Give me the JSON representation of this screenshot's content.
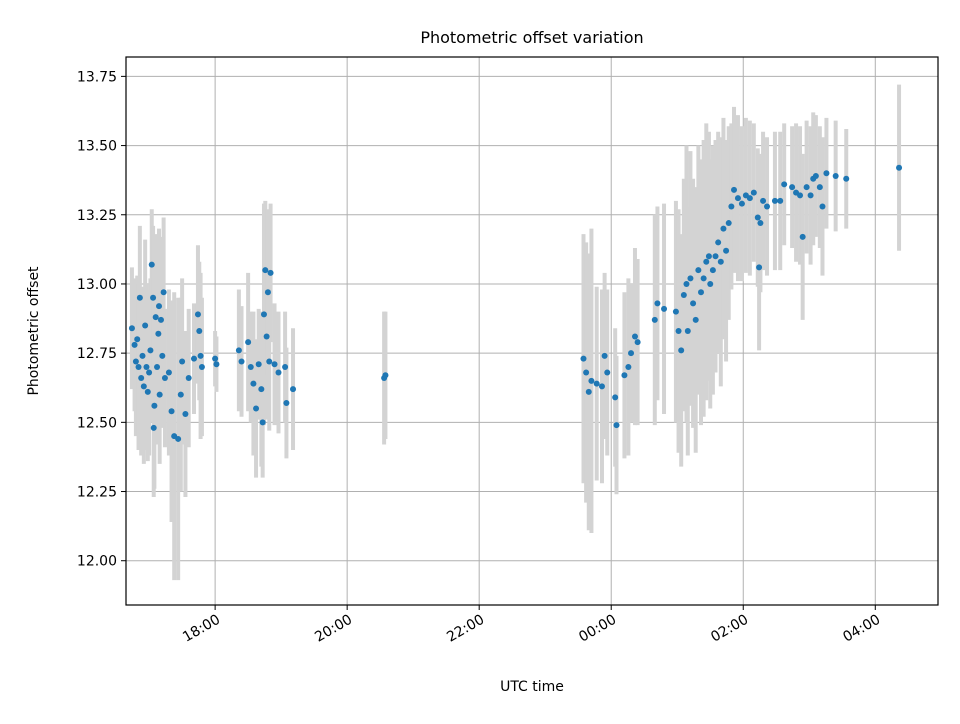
{
  "chart_data": {
    "type": "scatter",
    "title": "Photometric offset variation",
    "xlabel": "UTC time",
    "ylabel": "Photometric offset",
    "x_tick_labels": [
      "18:00",
      "20:00",
      "22:00",
      "00:00",
      "02:00",
      "04:00"
    ],
    "x_tick_hours": [
      18,
      20,
      22,
      24,
      26,
      28
    ],
    "y_ticks": [
      12.0,
      12.25,
      12.5,
      12.75,
      13.0,
      13.25,
      13.5,
      13.75
    ],
    "y_tick_labels": [
      "12.00",
      "12.25",
      "12.50",
      "12.75",
      "13.00",
      "13.25",
      "13.50",
      "13.75"
    ],
    "x_range_hours": [
      16.65,
      28.95
    ],
    "ylim": [
      11.84,
      13.82
    ],
    "grid": true,
    "marker_color": "#1f77b4",
    "errorbar_color": "#d3d3d3",
    "points": [
      [
        16.74,
        12.84,
        0.22
      ],
      [
        16.78,
        12.78,
        0.24
      ],
      [
        16.8,
        12.72,
        0.27
      ],
      [
        16.82,
        12.8,
        0.23
      ],
      [
        16.84,
        12.7,
        0.3
      ],
      [
        16.86,
        12.95,
        0.26
      ],
      [
        16.88,
        12.66,
        0.28
      ],
      [
        16.9,
        12.74,
        0.25
      ],
      [
        16.92,
        12.63,
        0.28
      ],
      [
        16.94,
        12.85,
        0.31
      ],
      [
        16.96,
        12.7,
        0.3
      ],
      [
        16.98,
        12.61,
        0.25
      ],
      [
        17.0,
        12.68,
        0.3
      ],
      [
        17.02,
        12.76,
        0.26
      ],
      [
        17.04,
        13.07,
        0.2
      ],
      [
        17.06,
        12.95,
        0.26
      ],
      [
        17.07,
        12.48,
        0.25
      ],
      [
        17.08,
        12.56,
        0.3
      ],
      [
        17.1,
        12.88,
        0.3
      ],
      [
        17.12,
        12.7,
        0.28
      ],
      [
        17.14,
        12.82,
        0.3
      ],
      [
        17.15,
        12.92,
        0.28
      ],
      [
        17.16,
        12.6,
        0.25
      ],
      [
        17.18,
        12.87,
        0.3
      ],
      [
        17.2,
        12.74,
        0.26
      ],
      [
        17.22,
        12.97,
        0.27
      ],
      [
        17.24,
        12.66,
        0.25
      ],
      [
        17.3,
        12.68,
        0.3
      ],
      [
        17.34,
        12.54,
        0.4
      ],
      [
        17.38,
        12.45,
        0.52
      ],
      [
        17.44,
        12.44,
        0.51
      ],
      [
        17.48,
        12.6,
        0.35
      ],
      [
        17.5,
        12.72,
        0.3
      ],
      [
        17.55,
        12.53,
        0.3
      ],
      [
        17.6,
        12.66,
        0.25
      ],
      [
        17.68,
        12.73,
        0.2
      ],
      [
        17.74,
        12.89,
        0.25
      ],
      [
        17.76,
        12.83,
        0.25
      ],
      [
        17.78,
        12.74,
        0.3
      ],
      [
        17.8,
        12.7,
        0.25
      ],
      [
        18.0,
        12.73,
        0.1
      ],
      [
        18.02,
        12.71,
        0.1
      ],
      [
        18.36,
        12.76,
        0.22
      ],
      [
        18.4,
        12.72,
        0.2
      ],
      [
        18.5,
        12.79,
        0.25
      ],
      [
        18.54,
        12.7,
        0.2
      ],
      [
        18.58,
        12.64,
        0.26
      ],
      [
        18.62,
        12.55,
        0.25
      ],
      [
        18.66,
        12.71,
        0.2
      ],
      [
        18.7,
        12.62,
        0.28
      ],
      [
        18.72,
        12.5,
        0.2
      ],
      [
        18.74,
        12.89,
        0.4
      ],
      [
        18.76,
        13.05,
        0.25
      ],
      [
        18.78,
        12.81,
        0.3
      ],
      [
        18.8,
        12.97,
        0.3
      ],
      [
        18.82,
        12.72,
        0.25
      ],
      [
        18.84,
        13.04,
        0.25
      ],
      [
        18.9,
        12.71,
        0.22
      ],
      [
        18.96,
        12.68,
        0.22
      ],
      [
        19.06,
        12.7,
        0.2
      ],
      [
        19.08,
        12.57,
        0.2
      ],
      [
        19.18,
        12.62,
        0.22
      ],
      [
        20.56,
        12.66,
        0.24
      ],
      [
        20.58,
        12.67,
        0.23
      ],
      [
        23.58,
        12.73,
        0.45
      ],
      [
        23.62,
        12.68,
        0.47
      ],
      [
        23.66,
        12.61,
        0.5
      ],
      [
        23.7,
        12.65,
        0.55
      ],
      [
        23.78,
        12.64,
        0.35
      ],
      [
        23.86,
        12.63,
        0.35
      ],
      [
        23.9,
        12.74,
        0.3
      ],
      [
        23.94,
        12.68,
        0.3
      ],
      [
        24.06,
        12.59,
        0.25
      ],
      [
        24.08,
        12.49,
        0.25
      ],
      [
        24.2,
        12.67,
        0.3
      ],
      [
        24.26,
        12.7,
        0.32
      ],
      [
        24.3,
        12.75,
        0.25
      ],
      [
        24.36,
        12.81,
        0.32
      ],
      [
        24.4,
        12.79,
        0.3
      ],
      [
        24.66,
        12.87,
        0.38
      ],
      [
        24.7,
        12.93,
        0.35
      ],
      [
        24.8,
        12.91,
        0.38
      ],
      [
        24.98,
        12.9,
        0.4
      ],
      [
        25.02,
        12.83,
        0.44
      ],
      [
        25.06,
        12.76,
        0.42
      ],
      [
        25.1,
        12.96,
        0.42
      ],
      [
        25.14,
        13.0,
        0.5
      ],
      [
        25.16,
        12.83,
        0.45
      ],
      [
        25.2,
        13.02,
        0.46
      ],
      [
        25.24,
        12.93,
        0.45
      ],
      [
        25.28,
        12.87,
        0.48
      ],
      [
        25.32,
        13.05,
        0.45
      ],
      [
        25.36,
        12.97,
        0.48
      ],
      [
        25.4,
        13.02,
        0.5
      ],
      [
        25.44,
        13.08,
        0.5
      ],
      [
        25.48,
        13.1,
        0.45
      ],
      [
        25.5,
        13.0,
        0.45
      ],
      [
        25.54,
        13.05,
        0.45
      ],
      [
        25.58,
        13.1,
        0.42
      ],
      [
        25.62,
        13.15,
        0.4
      ],
      [
        25.66,
        13.08,
        0.45
      ],
      [
        25.7,
        13.2,
        0.4
      ],
      [
        25.74,
        13.12,
        0.4
      ],
      [
        25.78,
        13.22,
        0.35
      ],
      [
        25.82,
        13.28,
        0.3
      ],
      [
        25.86,
        13.34,
        0.3
      ],
      [
        25.92,
        13.31,
        0.3
      ],
      [
        25.98,
        13.29,
        0.28
      ],
      [
        26.04,
        13.32,
        0.28
      ],
      [
        26.1,
        13.31,
        0.28
      ],
      [
        26.16,
        13.33,
        0.25
      ],
      [
        26.22,
        13.24,
        0.25
      ],
      [
        26.24,
        13.06,
        0.3
      ],
      [
        26.26,
        13.22,
        0.25
      ],
      [
        26.3,
        13.3,
        0.25
      ],
      [
        26.36,
        13.28,
        0.25
      ],
      [
        26.48,
        13.3,
        0.25
      ],
      [
        26.56,
        13.3,
        0.25
      ],
      [
        26.62,
        13.36,
        0.22
      ],
      [
        26.74,
        13.35,
        0.22
      ],
      [
        26.8,
        13.33,
        0.25
      ],
      [
        26.86,
        13.32,
        0.25
      ],
      [
        26.9,
        13.17,
        0.3
      ],
      [
        26.96,
        13.35,
        0.24
      ],
      [
        27.02,
        13.32,
        0.25
      ],
      [
        27.06,
        13.38,
        0.24
      ],
      [
        27.1,
        13.39,
        0.22
      ],
      [
        27.16,
        13.35,
        0.22
      ],
      [
        27.2,
        13.28,
        0.25
      ],
      [
        27.26,
        13.4,
        0.2
      ],
      [
        27.4,
        13.39,
        0.2
      ],
      [
        27.56,
        13.38,
        0.18
      ],
      [
        28.36,
        13.42,
        0.3
      ]
    ]
  }
}
